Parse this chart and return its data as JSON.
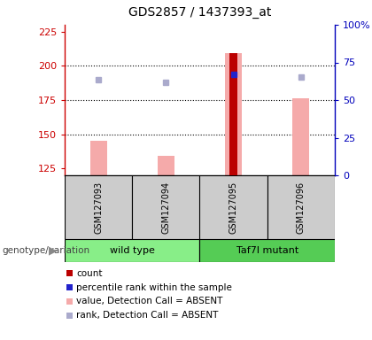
{
  "title": "GDS2857 / 1437393_at",
  "samples": [
    "GSM127093",
    "GSM127094",
    "GSM127095",
    "GSM127096"
  ],
  "ylim_left": [
    120,
    230
  ],
  "ylim_right": [
    0,
    100
  ],
  "yticks_left": [
    125,
    150,
    175,
    200,
    225
  ],
  "ytick_labels_right": [
    "0",
    "25",
    "50",
    "75",
    "100%"
  ],
  "hgrid_vals": [
    150,
    175,
    200
  ],
  "red_bar_index": 2,
  "red_bar_value": 209,
  "red_bar_color": "#bb0000",
  "pink_bar_values": [
    145,
    134,
    209,
    176
  ],
  "pink_bar_color": "#f5aaaa",
  "pink_bar_width": 0.25,
  "red_bar_width": 0.12,
  "blue_sq_values": [
    190,
    188,
    194,
    192
  ],
  "blue_sq_color_absent": "#aaaacc",
  "blue_sq_color_present": "#2222cc",
  "blue_sq_present_index": 2,
  "left_axis_color": "#cc0000",
  "right_axis_color": "#0000bb",
  "sample_box_color": "#cccccc",
  "group1_color": "#88ee88",
  "group2_color": "#55cc55",
  "group1_label": "wild type",
  "group2_label": "Taf7l mutant",
  "legend_items": [
    {
      "label": "count",
      "color": "#bb0000"
    },
    {
      "label": "percentile rank within the sample",
      "color": "#2222cc"
    },
    {
      "label": "value, Detection Call = ABSENT",
      "color": "#f5aaaa"
    },
    {
      "label": "rank, Detection Call = ABSENT",
      "color": "#aaaacc"
    }
  ],
  "genotype_label": "genotype/variation"
}
